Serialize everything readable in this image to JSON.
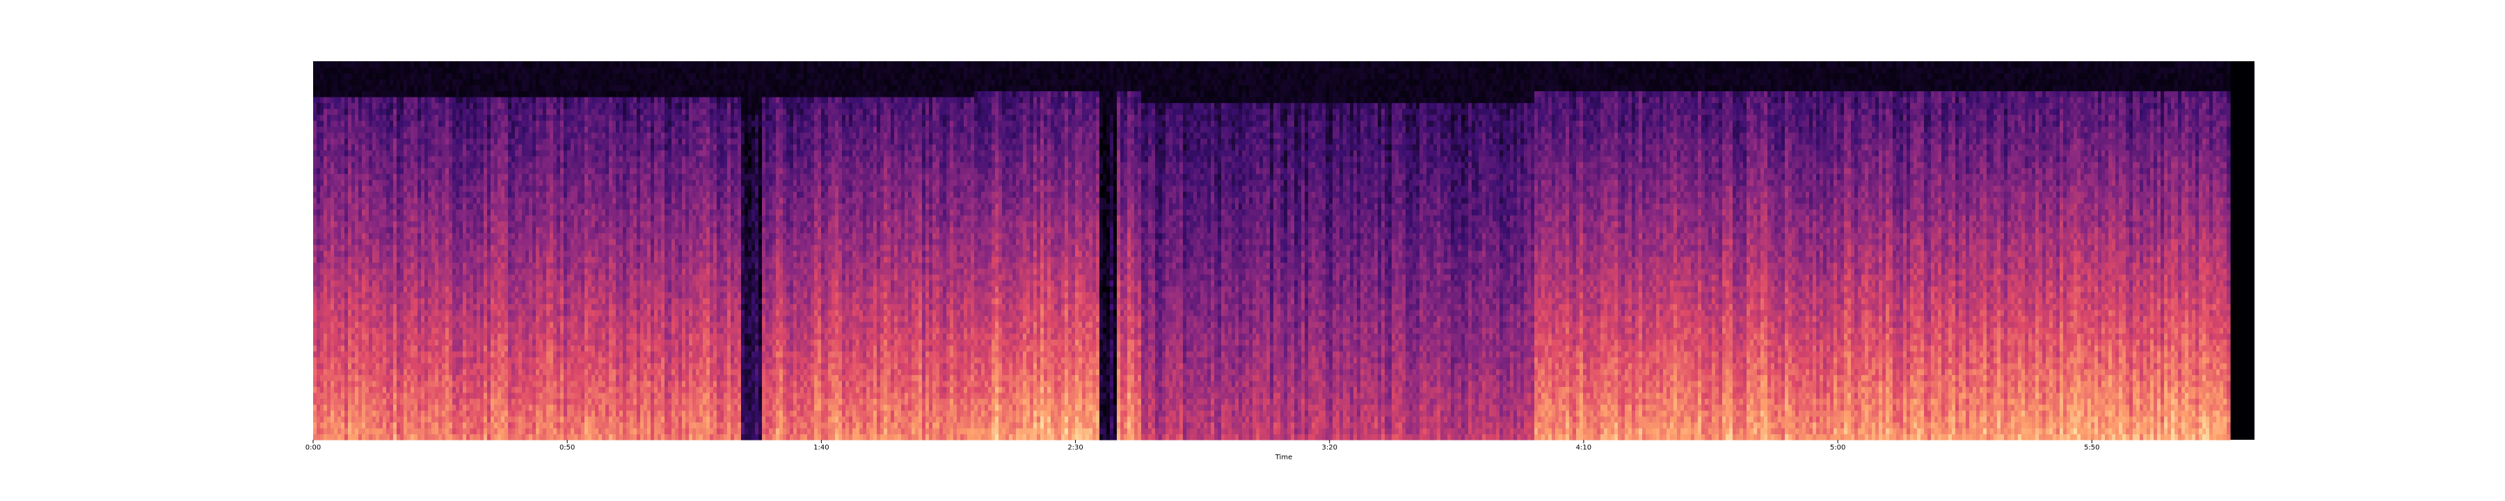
{
  "chart_data": {
    "type": "heatmap",
    "title": "",
    "xlabel": "Time",
    "ylabel": "",
    "x_ticks": [
      "0:00",
      "0:50",
      "1:40",
      "2:30",
      "3:20",
      "4:10",
      "5:00",
      "5:50"
    ],
    "x_tick_seconds": [
      0,
      50,
      100,
      150,
      200,
      250,
      300,
      350
    ],
    "xlim_seconds": [
      0,
      382
    ],
    "audio_end_seconds": 377,
    "grid": false,
    "legend": "none",
    "colormap": [
      "#000004",
      "#3b0f70",
      "#8c2981",
      "#de4968",
      "#fe9f6d",
      "#fcfdbf"
    ],
    "colors": {
      "background": "#ffffff",
      "silence": "#000004"
    },
    "segments": [
      {
        "start": 0,
        "end": 84,
        "energy": 0.72
      },
      {
        "start": 84,
        "end": 88,
        "energy": 0.15
      },
      {
        "start": 88,
        "end": 130,
        "energy": 0.74
      },
      {
        "start": 130,
        "end": 155,
        "energy": 0.82
      },
      {
        "start": 155,
        "end": 158,
        "energy": 0.12
      },
      {
        "start": 158,
        "end": 163,
        "energy": 0.78
      },
      {
        "start": 163,
        "end": 240,
        "energy": 0.52
      },
      {
        "start": 240,
        "end": 330,
        "energy": 0.78
      },
      {
        "start": 330,
        "end": 377,
        "energy": 0.8
      },
      {
        "start": 377,
        "end": 382,
        "energy": 0.0
      }
    ]
  }
}
